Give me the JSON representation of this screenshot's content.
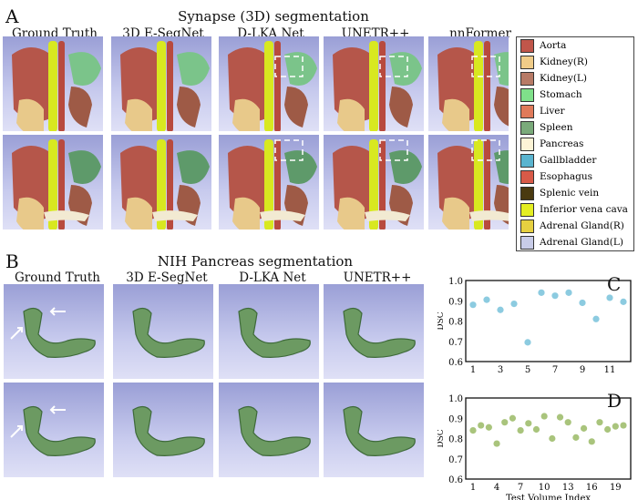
{
  "panel_a": {
    "letter": "A",
    "title": "Synapse (3D) segmentation",
    "columns": [
      "Ground Truth",
      "3D E-SegNet",
      "D-LKA Net",
      "UNETR++",
      "nnFormer"
    ]
  },
  "panel_b": {
    "letter": "B",
    "title": "NIH Pancreas segmentation",
    "columns": [
      "Ground Truth",
      "3D E-SegNet",
      "D-LKA Net",
      "UNETR++"
    ]
  },
  "legend": [
    {
      "label": "Aorta",
      "color": "#c0564a"
    },
    {
      "label": "Kidney(R)",
      "color": "#f0cc88"
    },
    {
      "label": "Kidney(L)",
      "color": "#b77a66"
    },
    {
      "label": "Stomach",
      "color": "#7fe08a"
    },
    {
      "label": "Liver",
      "color": "#e07a5a"
    },
    {
      "label": "Spleen",
      "color": "#7aaa7a"
    },
    {
      "label": "Pancreas",
      "color": "#fdf4d6"
    },
    {
      "label": "Gallbladder",
      "color": "#5ab4cf"
    },
    {
      "label": "Esophagus",
      "color": "#d85a48"
    },
    {
      "label": "Splenic vein",
      "color": "#4a3a10"
    },
    {
      "label": "Inferior vena cava",
      "color": "#e4ee22"
    },
    {
      "label": "Adrenal Gland(R)",
      "color": "#e6d040"
    },
    {
      "label": "Adrenal Gland(L)",
      "color": "#c8cce8"
    }
  ],
  "chart_data": [
    {
      "type": "scatter",
      "letter": "C",
      "ylabel": "DSC",
      "xlabel": "",
      "ylim": [
        0.6,
        1.0
      ],
      "yticks": [
        "0.6",
        "0.7",
        "0.8",
        "0.9",
        "1.0"
      ],
      "xticks": [
        "1",
        "3",
        "5",
        "7",
        "9",
        "11"
      ],
      "color": "#8ccbe0",
      "x": [
        1,
        2,
        3,
        4,
        5,
        6,
        7,
        8,
        9,
        10,
        11,
        12
      ],
      "y": [
        0.88,
        0.905,
        0.855,
        0.885,
        0.695,
        0.94,
        0.925,
        0.94,
        0.89,
        0.81,
        0.915,
        0.895
      ]
    },
    {
      "type": "scatter",
      "letter": "D",
      "ylabel": "DSC",
      "xlabel": "Test Volume Index",
      "ylim": [
        0.6,
        1.0
      ],
      "yticks": [
        "0.6",
        "0.7",
        "0.8",
        "0.9",
        "1.0"
      ],
      "xticks": [
        "1",
        "4",
        "7",
        "10",
        "13",
        "16",
        "19"
      ],
      "color": "#a9c47c",
      "x": [
        1,
        2,
        3,
        4,
        5,
        6,
        7,
        8,
        9,
        10,
        11,
        12,
        13,
        14,
        15,
        16,
        17,
        18,
        19,
        20
      ],
      "y": [
        0.84,
        0.865,
        0.855,
        0.775,
        0.88,
        0.9,
        0.84,
        0.875,
        0.845,
        0.91,
        0.8,
        0.905,
        0.88,
        0.805,
        0.85,
        0.785,
        0.88,
        0.845,
        0.86,
        0.865
      ]
    }
  ]
}
